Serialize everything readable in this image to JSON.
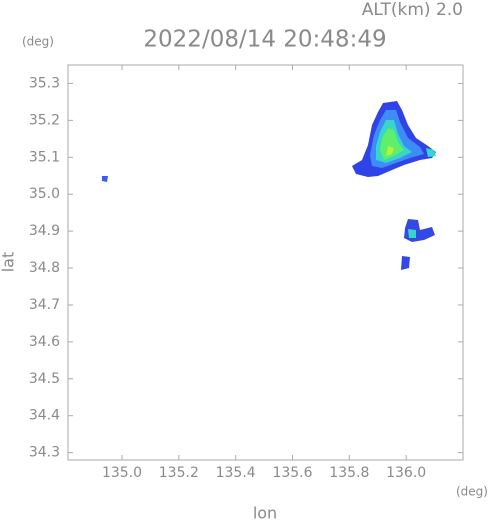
{
  "chart_data": {
    "type": "map",
    "title": "2022/08/14 20:48:49",
    "subtitle": "ALT(km) 2.0",
    "x_label": "lon",
    "y_label": "lat",
    "x_unit": "(deg)",
    "y_unit": "(deg)",
    "xlim": [
      134.81,
      136.2
    ],
    "ylim": [
      34.28,
      35.35
    ],
    "xticks": [
      {
        "value": 135.0,
        "label": "135.0"
      },
      135.2,
      135.4,
      135.6,
      135.8,
      {
        "value": 136.0,
        "label": "136.0"
      }
    ],
    "yticks": [
      34.3,
      34.4,
      34.5,
      34.6,
      34.7,
      34.8,
      34.9,
      {
        "value": 35.0,
        "label": "35.0"
      },
      35.1,
      35.2,
      35.3
    ]
  }
}
